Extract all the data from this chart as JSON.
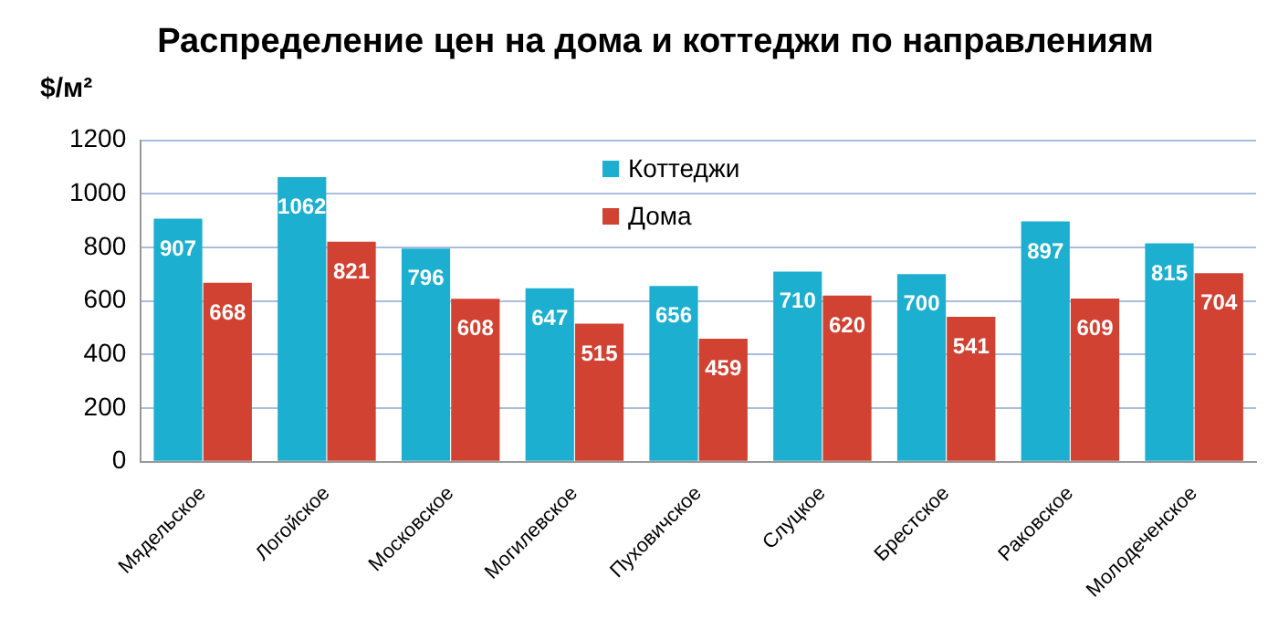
{
  "chart_data": {
    "type": "bar",
    "title": "Распределение цен на дома и коттеджи по направлениям",
    "ylabel": "$/м²",
    "categories": [
      "Мядельское",
      "Логойское",
      "Московское",
      "Могилевское",
      "Пуховичское",
      "Слуцкое",
      "Брестское",
      "Раковское",
      "Молодеченское"
    ],
    "series": [
      {
        "name": "Коттеджи",
        "color": "#1cafcf",
        "values": [
          907,
          1062,
          796,
          647,
          656,
          710,
          700,
          897,
          815
        ]
      },
      {
        "name": "Дома",
        "color": "#d24232",
        "values": [
          668,
          821,
          608,
          515,
          459,
          620,
          541,
          609,
          704
        ]
      }
    ],
    "ylim": [
      0,
      1200
    ],
    "yticks": [
      0,
      200,
      400,
      600,
      800,
      1000,
      1200
    ],
    "grid": "y",
    "legend": "top",
    "data_labels": true
  }
}
